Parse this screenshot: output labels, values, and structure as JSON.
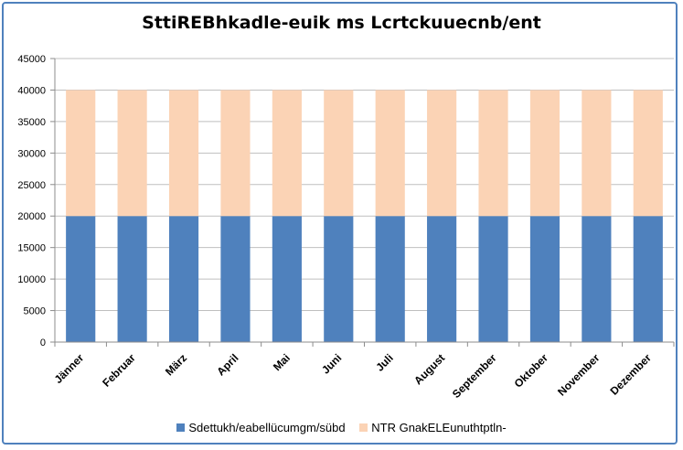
{
  "chart_data": {
    "type": "bar",
    "stacked": true,
    "title": "SttiREBhkadle-euik ms Lcrtckuuecnb/ent",
    "categories": [
      "Jänner",
      "Februar",
      "März",
      "April",
      "Mai",
      "Juni",
      "Juli",
      "August",
      "September",
      "Oktober",
      "November",
      "Dezember"
    ],
    "series": [
      {
        "name": "Sdettukh/eabellücumgm/sübd",
        "color": "#4f81bd",
        "values": [
          20000,
          20000,
          20000,
          20000,
          20000,
          20000,
          20000,
          20000,
          20000,
          20000,
          20000,
          20000
        ]
      },
      {
        "name": "NTR GnakELEunuthtptln-",
        "color": "#fbd3b5",
        "values": [
          20000,
          20000,
          20000,
          20000,
          20000,
          20000,
          20000,
          20000,
          20000,
          20000,
          20000,
          20000
        ]
      }
    ],
    "ylim": [
      0,
      45000
    ],
    "yticks": [
      0,
      5000,
      10000,
      15000,
      20000,
      25000,
      30000,
      35000,
      40000,
      45000
    ],
    "grid": true,
    "legend_position": "bottom"
  }
}
